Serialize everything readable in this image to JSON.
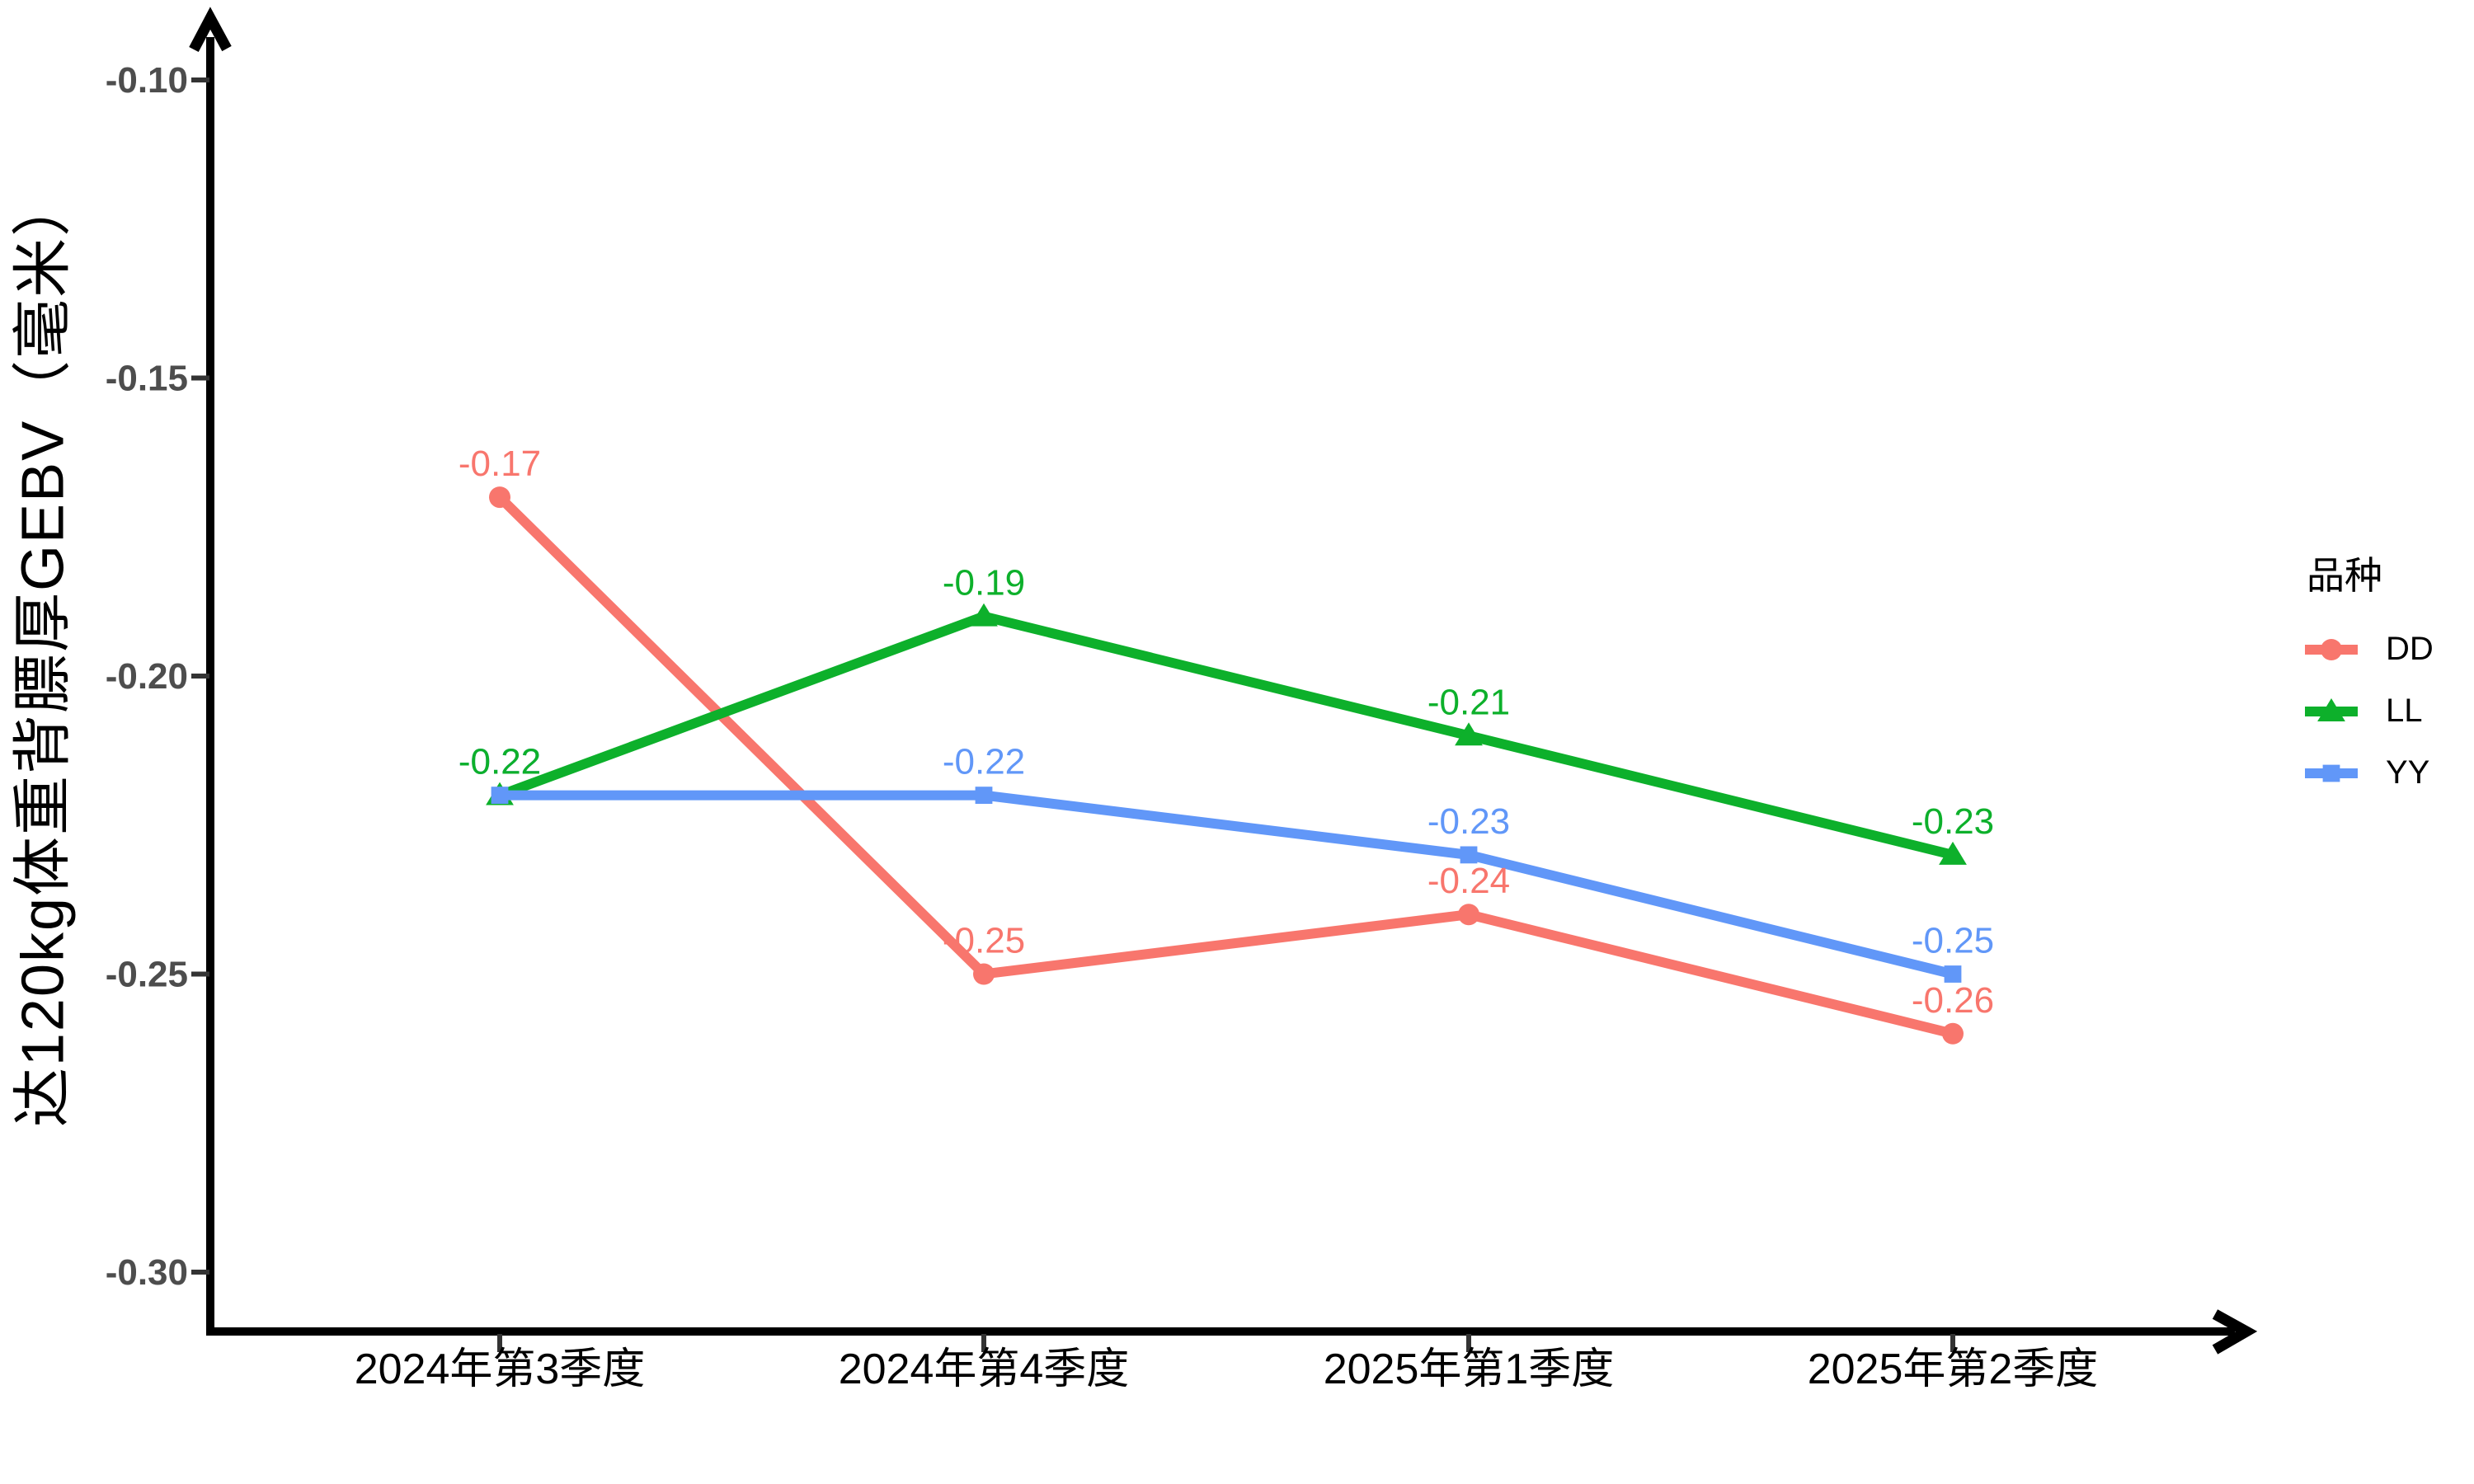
{
  "chart_data": {
    "type": "line",
    "title": "",
    "categories": [
      "2024年第3季度",
      "2024年第4季度",
      "2025年第1季度",
      "2025年第2季度"
    ],
    "series": [
      {
        "name": "DD",
        "color": "#F8766D",
        "marker": "circle",
        "values": [
          -0.17,
          -0.25,
          -0.24,
          -0.26
        ],
        "point_labels": [
          "-0.17",
          "-0.25",
          "-0.24",
          "-0.26"
        ]
      },
      {
        "name": "LL",
        "color": "#0DB02B",
        "marker": "triangle",
        "values": [
          -0.22,
          -0.19,
          -0.21,
          -0.23
        ],
        "point_labels": [
          "-0.22",
          "-0.19",
          "-0.21",
          "-0.23"
        ]
      },
      {
        "name": "YY",
        "color": "#6197F8",
        "marker": "square",
        "values": [
          -0.22,
          -0.22,
          -0.23,
          -0.25
        ],
        "point_labels": [
          "-0.22",
          "-0.22",
          "-0.23",
          "-0.25"
        ]
      }
    ],
    "xlabel": "",
    "ylabel": "达120kg体重背膘厚GEBV（毫米）",
    "y_tick_values": [
      -0.1,
      -0.15,
      -0.2,
      -0.25,
      -0.3
    ],
    "y_tick_labels": [
      "-0.10",
      "-0.15",
      "-0.20",
      "-0.25",
      "-0.30"
    ],
    "ylim": [
      -0.316,
      -0.084
    ],
    "grid": false,
    "axis_arrows": true,
    "legend_title": "品种",
    "legend_position": "right"
  },
  "colors": {
    "axis": "#000000",
    "tick_mark": "#333333",
    "tick_text": "#4D4D4D",
    "x_label_text": "#000000",
    "background": "#FFFFFF"
  }
}
